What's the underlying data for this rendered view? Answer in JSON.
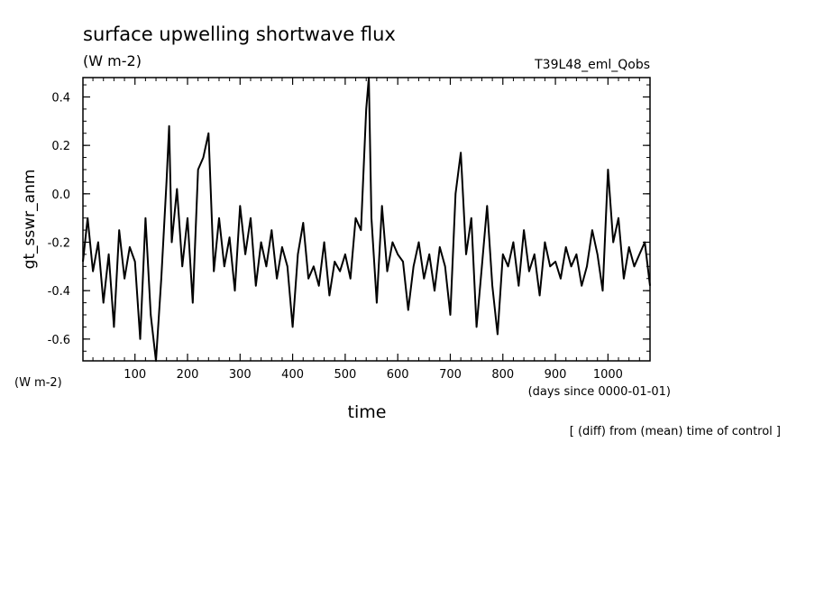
{
  "chart_data": {
    "type": "line",
    "title": "surface upwelling shortwave flux",
    "units": "(W m-2)",
    "experiment": "T39L48_eml_Qobs",
    "ylabel": "gt_sswr_anm",
    "yunits_label": "(W m-2)",
    "xlabel": "time",
    "xunits_label": "(days since 0000-01-01)",
    "footnote": "[ (diff) from (mean) time of control ]",
    "xlim": [
      1,
      1080
    ],
    "ylim": [
      -0.69,
      0.48
    ],
    "xticks": [
      100,
      200,
      300,
      400,
      500,
      600,
      700,
      800,
      900,
      1000
    ],
    "yticks": [
      -0.6,
      -0.4,
      -0.2,
      0.0,
      0.2,
      0.4
    ],
    "ytick_labels": [
      "-0.6",
      "-0.4",
      "-0.2",
      "0.0",
      "0.2",
      "0.4"
    ],
    "grid": false,
    "series": [
      {
        "color": "#000000",
        "x": [
          1,
          10,
          20,
          30,
          40,
          50,
          60,
          70,
          80,
          90,
          100,
          110,
          120,
          130,
          140,
          150,
          160,
          165,
          170,
          180,
          190,
          200,
          210,
          220,
          230,
          240,
          250,
          260,
          270,
          280,
          290,
          300,
          310,
          320,
          330,
          340,
          350,
          360,
          370,
          380,
          390,
          400,
          410,
          420,
          430,
          440,
          450,
          460,
          470,
          480,
          490,
          500,
          510,
          520,
          530,
          540,
          545,
          550,
          560,
          570,
          580,
          590,
          600,
          610,
          620,
          630,
          640,
          650,
          660,
          670,
          680,
          690,
          700,
          710,
          720,
          730,
          740,
          750,
          760,
          770,
          780,
          790,
          800,
          810,
          820,
          830,
          840,
          850,
          860,
          870,
          880,
          890,
          900,
          910,
          920,
          930,
          940,
          950,
          960,
          970,
          980,
          990,
          1000,
          1010,
          1020,
          1030,
          1040,
          1050,
          1060,
          1070,
          1080
        ],
        "y": [
          -0.28,
          -0.1,
          -0.32,
          -0.2,
          -0.45,
          -0.25,
          -0.55,
          -0.15,
          -0.35,
          -0.22,
          -0.28,
          -0.6,
          -0.1,
          -0.5,
          -0.69,
          -0.35,
          0.05,
          0.28,
          -0.2,
          0.02,
          -0.3,
          -0.1,
          -0.45,
          0.1,
          0.15,
          0.25,
          -0.32,
          -0.1,
          -0.3,
          -0.18,
          -0.4,
          -0.05,
          -0.25,
          -0.1,
          -0.38,
          -0.2,
          -0.3,
          -0.15,
          -0.35,
          -0.22,
          -0.3,
          -0.55,
          -0.25,
          -0.12,
          -0.35,
          -0.3,
          -0.38,
          -0.2,
          -0.42,
          -0.28,
          -0.32,
          -0.25,
          -0.35,
          -0.1,
          -0.15,
          0.35,
          0.48,
          -0.1,
          -0.45,
          -0.05,
          -0.32,
          -0.2,
          -0.25,
          -0.28,
          -0.48,
          -0.3,
          -0.2,
          -0.35,
          -0.25,
          -0.4,
          -0.22,
          -0.3,
          -0.5,
          0.0,
          0.17,
          -0.25,
          -0.1,
          -0.55,
          -0.3,
          -0.05,
          -0.38,
          -0.58,
          -0.25,
          -0.3,
          -0.2,
          -0.38,
          -0.15,
          -0.32,
          -0.25,
          -0.42,
          -0.2,
          -0.3,
          -0.28,
          -0.35,
          -0.22,
          -0.3,
          -0.25,
          -0.38,
          -0.3,
          -0.15,
          -0.25,
          -0.4,
          0.1,
          -0.2,
          -0.1,
          -0.35,
          -0.22,
          -0.3,
          -0.25,
          -0.2,
          -0.38
        ]
      }
    ]
  }
}
